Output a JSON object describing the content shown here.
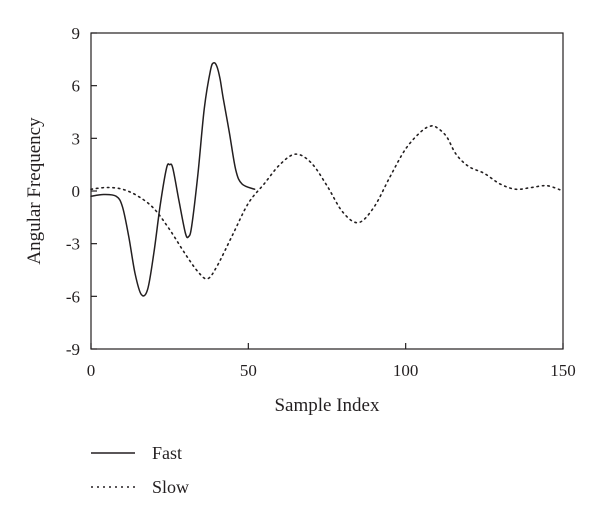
{
  "chart_data": {
    "type": "line",
    "title": "",
    "xlabel": "Sample Index",
    "ylabel": "Angular Frequency",
    "xlim": [
      0,
      150
    ],
    "ylim": [
      -9,
      9
    ],
    "xticks": [
      0,
      50,
      100,
      150
    ],
    "yticks": [
      9,
      6,
      3,
      0,
      -3,
      -6,
      -9
    ],
    "grid": false,
    "legend_position": "bottom-left",
    "series": [
      {
        "name": "Fast",
        "style": "solid",
        "color": "#231f20",
        "x": [
          0,
          4,
          8,
          10,
          12,
          14,
          16,
          18,
          20,
          22,
          24,
          25,
          26,
          28,
          30,
          31,
          32,
          34,
          36,
          38,
          39,
          40,
          41,
          42,
          44,
          46,
          48,
          52
        ],
        "y": [
          -0.3,
          -0.2,
          -0.3,
          -0.9,
          -2.6,
          -4.7,
          -5.9,
          -5.6,
          -3.5,
          -0.8,
          1.3,
          1.5,
          1.3,
          -0.6,
          -2.4,
          -2.6,
          -2.0,
          1.0,
          4.7,
          6.9,
          7.3,
          7.1,
          6.4,
          5.3,
          3.3,
          1.2,
          0.4,
          0.1
        ]
      },
      {
        "name": "Slow",
        "style": "dotted",
        "color": "#231f20",
        "x": [
          0,
          5,
          10,
          15,
          20,
          25,
          30,
          34,
          37,
          40,
          45,
          50,
          55,
          60,
          65,
          70,
          75,
          80,
          85,
          90,
          95,
          100,
          105,
          108,
          110,
          113,
          116,
          120,
          125,
          130,
          135,
          140,
          145,
          150
        ],
        "y": [
          0.1,
          0.2,
          0.1,
          -0.3,
          -1.0,
          -2.2,
          -3.6,
          -4.6,
          -5.0,
          -4.3,
          -2.5,
          -0.7,
          0.4,
          1.5,
          2.1,
          1.6,
          0.3,
          -1.2,
          -1.8,
          -0.9,
          0.8,
          2.4,
          3.4,
          3.7,
          3.6,
          3.1,
          2.1,
          1.4,
          1.0,
          0.4,
          0.1,
          0.2,
          0.3,
          0.0
        ]
      }
    ]
  }
}
